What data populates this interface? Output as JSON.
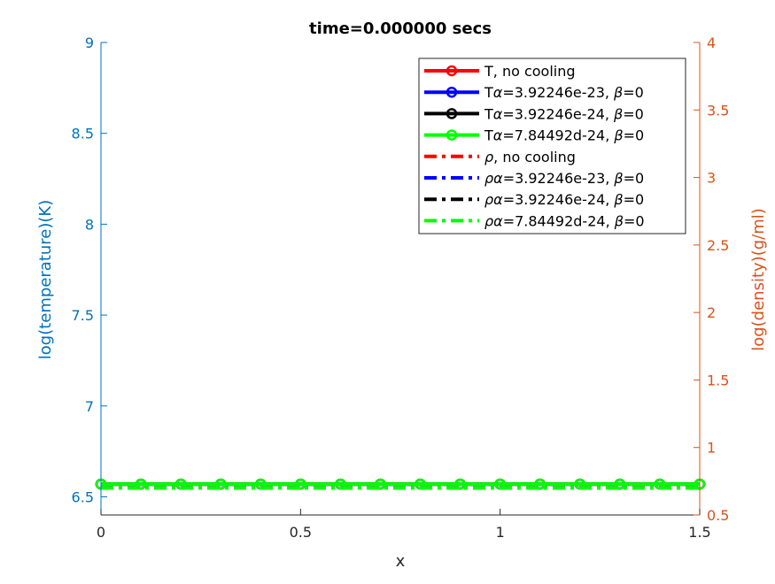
{
  "chart_data": {
    "type": "line",
    "title": "time=0.000000 secs",
    "xlabel": "x",
    "ylabel_left": "log(temperature)(K)",
    "ylabel_right": "log(density)(g/ml)",
    "xlim": [
      0,
      1.5
    ],
    "ylim_left": [
      6.4,
      9
    ],
    "ylim_right": [
      0.5,
      4
    ],
    "x_ticks": [
      0,
      0.5,
      1,
      1.5
    ],
    "x_tick_labels": [
      "0",
      "0.5",
      "1",
      "1.5"
    ],
    "y_left_ticks": [
      6.5,
      7,
      7.5,
      8,
      8.5,
      9
    ],
    "y_left_tick_labels": [
      "6.5",
      "7",
      "7.5",
      "8",
      "8.5",
      "9"
    ],
    "y_right_ticks": [
      0.5,
      1,
      1.5,
      2,
      2.5,
      3,
      3.5,
      4
    ],
    "y_right_tick_labels": [
      "0.5",
      "1",
      "1.5",
      "2",
      "2.5",
      "3",
      "3.5",
      "4"
    ],
    "grid": false,
    "legend_position": "top-right",
    "colors": {
      "left_axis": "#0072BD",
      "right_axis": "#D95319",
      "red": "#FF0000",
      "blue": "#0000FF",
      "black": "#000000",
      "green": "#00FF00"
    },
    "x": [
      0,
      0.1,
      0.2,
      0.3,
      0.4,
      0.5,
      0.6,
      0.7,
      0.8,
      0.9,
      1.0,
      1.1,
      1.2,
      1.3,
      1.4,
      1.5
    ],
    "series": [
      {
        "legend_prefix": "T",
        "legend_greek": "",
        "legend_text": ", no cooling",
        "axis": "left",
        "style": "solid-marker",
        "color": "#FF0000",
        "value": 6.57
      },
      {
        "legend_prefix": "T",
        "legend_greek": "α",
        "legend_text": "=3.92246e-23, ",
        "legend_greek2": "β",
        "legend_text2": "=0",
        "axis": "left",
        "style": "solid-marker",
        "color": "#0000FF",
        "value": 6.57
      },
      {
        "legend_prefix": "T",
        "legend_greek": "α",
        "legend_text": "=3.92246e-24, ",
        "legend_greek2": "β",
        "legend_text2": "=0",
        "axis": "left",
        "style": "solid-marker",
        "color": "#000000",
        "value": 6.57
      },
      {
        "legend_prefix": "T",
        "legend_greek": "α",
        "legend_text": "=7.84492d-24, ",
        "legend_greek2": "β",
        "legend_text2": "=0",
        "axis": "left",
        "style": "solid-marker",
        "color": "#00FF00",
        "value": 6.57
      },
      {
        "legend_prefix": "ρ",
        "legend_greek": "",
        "legend_text": ", no cooling",
        "axis": "right",
        "style": "dashdot",
        "color": "#FF0000",
        "value": 0.7
      },
      {
        "legend_prefix": "ρ",
        "legend_greek": "α",
        "legend_text": "=3.92246e-23, ",
        "legend_greek2": "β",
        "legend_text2": "=0",
        "axis": "right",
        "style": "dashdot",
        "color": "#0000FF",
        "value": 0.7
      },
      {
        "legend_prefix": "ρ",
        "legend_greek": "α",
        "legend_text": "=3.92246e-24, ",
        "legend_greek2": "β",
        "legend_text2": "=0",
        "axis": "right",
        "style": "dashdot",
        "color": "#000000",
        "value": 0.7
      },
      {
        "legend_prefix": "ρ",
        "legend_greek": "α",
        "legend_text": "=7.84492d-24, ",
        "legend_greek2": "β",
        "legend_text2": "=0",
        "axis": "right",
        "style": "dashdot",
        "color": "#00FF00",
        "value": 0.7
      }
    ]
  }
}
